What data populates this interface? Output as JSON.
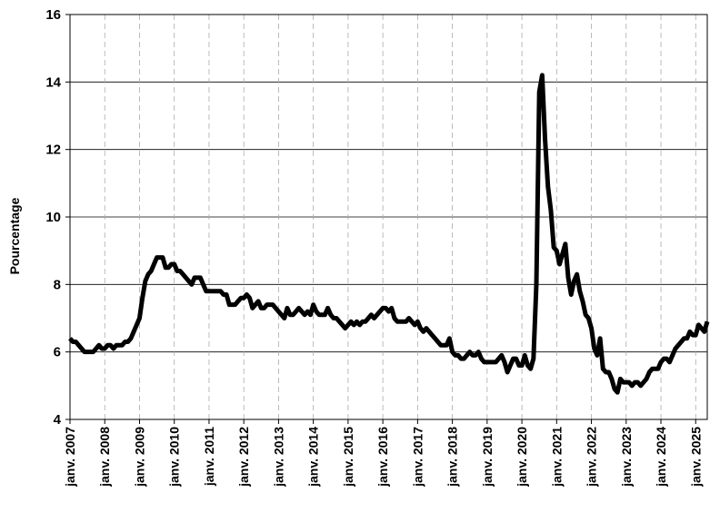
{
  "chart_data": {
    "type": "line",
    "y_label": "Pourcentage",
    "categories": [
      "janv. 2007",
      null,
      null,
      null,
      null,
      null,
      null,
      null,
      null,
      null,
      null,
      null,
      "janv. 2008",
      null,
      null,
      null,
      null,
      null,
      null,
      null,
      null,
      null,
      null,
      null,
      "janv. 2009",
      null,
      null,
      null,
      null,
      null,
      null,
      null,
      null,
      null,
      null,
      null,
      "janv. 2010",
      null,
      null,
      null,
      null,
      null,
      null,
      null,
      null,
      null,
      null,
      null,
      "janv. 2011",
      null,
      null,
      null,
      null,
      null,
      null,
      null,
      null,
      null,
      null,
      null,
      "janv. 2012",
      null,
      null,
      null,
      null,
      null,
      null,
      null,
      null,
      null,
      null,
      null,
      "janv. 2013",
      null,
      null,
      null,
      null,
      null,
      null,
      null,
      null,
      null,
      null,
      null,
      "janv. 2014",
      null,
      null,
      null,
      null,
      null,
      null,
      null,
      null,
      null,
      null,
      null,
      "janv. 2015",
      null,
      null,
      null,
      null,
      null,
      null,
      null,
      null,
      null,
      null,
      null,
      "janv. 2016",
      null,
      null,
      null,
      null,
      null,
      null,
      null,
      null,
      null,
      null,
      null,
      "janv. 2017",
      null,
      null,
      null,
      null,
      null,
      null,
      null,
      null,
      null,
      null,
      null,
      "janv. 2018",
      null,
      null,
      null,
      null,
      null,
      null,
      null,
      null,
      null,
      null,
      null,
      "janv. 2019",
      null,
      null,
      null,
      null,
      null,
      null,
      null,
      null,
      null,
      null,
      null,
      "janv. 2020",
      null,
      null,
      null,
      null,
      null,
      null,
      null,
      null,
      null,
      null,
      null,
      "janv. 2021",
      null,
      null,
      null,
      null,
      null,
      null,
      null,
      null,
      null,
      null,
      null,
      "janv. 2022",
      null,
      null,
      null,
      null,
      null,
      null,
      null,
      null,
      null,
      null,
      null,
      "janv. 2023",
      null,
      null,
      null,
      null,
      null,
      null,
      null,
      null,
      null,
      null,
      null,
      "janv. 2024",
      null,
      null,
      null,
      null,
      null,
      null,
      null,
      null,
      null,
      null,
      null,
      "janv. 2025",
      null,
      null,
      null,
      null
    ],
    "values": [
      6.4,
      6.3,
      6.3,
      6.2,
      6.1,
      6.0,
      6.0,
      6.0,
      6.0,
      6.1,
      6.2,
      6.1,
      6.1,
      6.2,
      6.2,
      6.1,
      6.2,
      6.2,
      6.2,
      6.3,
      6.3,
      6.4,
      6.6,
      6.8,
      7.0,
      7.6,
      8.1,
      8.3,
      8.4,
      8.6,
      8.8,
      8.8,
      8.8,
      8.5,
      8.5,
      8.6,
      8.6,
      8.4,
      8.4,
      8.3,
      8.2,
      8.1,
      8.0,
      8.2,
      8.2,
      8.2,
      8.0,
      7.8,
      7.8,
      7.8,
      7.8,
      7.8,
      7.8,
      7.7,
      7.7,
      7.4,
      7.4,
      7.4,
      7.5,
      7.6,
      7.6,
      7.7,
      7.6,
      7.3,
      7.4,
      7.5,
      7.3,
      7.3,
      7.4,
      7.4,
      7.4,
      7.3,
      7.2,
      7.1,
      7.0,
      7.3,
      7.1,
      7.1,
      7.2,
      7.3,
      7.2,
      7.1,
      7.2,
      7.1,
      7.4,
      7.2,
      7.1,
      7.1,
      7.1,
      7.3,
      7.1,
      7.0,
      7.0,
      6.9,
      6.8,
      6.7,
      6.8,
      6.9,
      6.8,
      6.9,
      6.8,
      6.9,
      6.9,
      7.0,
      7.1,
      7.0,
      7.1,
      7.2,
      7.3,
      7.3,
      7.2,
      7.3,
      7.0,
      6.9,
      6.9,
      6.9,
      6.9,
      7.0,
      6.9,
      6.8,
      6.9,
      6.7,
      6.6,
      6.7,
      6.6,
      6.5,
      6.4,
      6.3,
      6.2,
      6.2,
      6.2,
      6.4,
      6.0,
      5.9,
      5.9,
      5.8,
      5.8,
      5.9,
      6.0,
      5.9,
      5.9,
      6.0,
      5.8,
      5.7,
      5.7,
      5.7,
      5.7,
      5.7,
      5.8,
      5.9,
      5.7,
      5.4,
      5.6,
      5.8,
      5.8,
      5.6,
      5.6,
      5.9,
      5.6,
      5.5,
      5.8,
      8.0,
      13.7,
      14.2,
      12.3,
      10.9,
      10.2,
      9.1,
      9.0,
      8.6,
      8.9,
      9.2,
      8.2,
      7.7,
      8.1,
      8.3,
      7.8,
      7.5,
      7.1,
      7.0,
      6.7,
      6.1,
      5.9,
      6.4,
      5.5,
      5.4,
      5.4,
      5.2,
      4.9,
      4.8,
      5.2,
      5.1,
      5.1,
      5.1,
      5.0,
      5.1,
      5.1,
      5.0,
      5.1,
      5.2,
      5.4,
      5.5,
      5.5,
      5.5,
      5.7,
      5.8,
      5.8,
      5.7,
      5.9,
      6.1,
      6.2,
      6.3,
      6.4,
      6.4,
      6.6,
      6.5,
      6.5,
      6.8,
      6.7,
      6.6,
      6.9
    ],
    "color": "#000000",
    "ylim": [
      4,
      16
    ],
    "yticks": [
      4,
      6,
      8,
      10,
      12,
      14,
      16
    ],
    "grid": true
  }
}
